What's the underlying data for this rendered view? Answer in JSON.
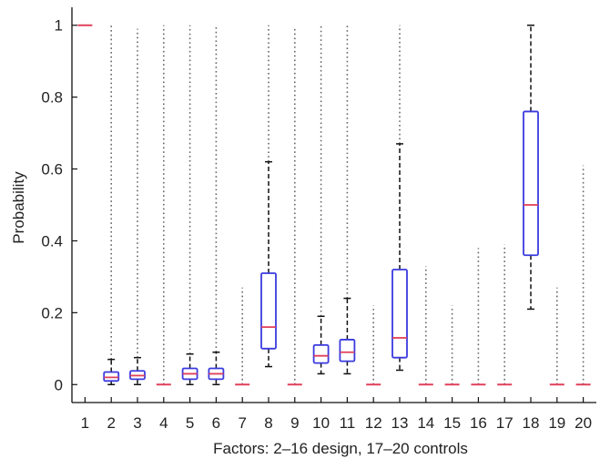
{
  "chart_data": {
    "type": "boxplot",
    "ylabel": "Probability",
    "xlabel": "Factors: 2–16 design, 17–20 controls",
    "ylim": [
      -0.05,
      1.05
    ],
    "y_ticks": [
      "0",
      "0.2",
      "0.4",
      "0.6",
      "0.8",
      "1"
    ],
    "y_tick_values": [
      0,
      0.2,
      0.4,
      0.6,
      0.8,
      1
    ],
    "categories": [
      "1",
      "2",
      "3",
      "4",
      "5",
      "6",
      "7",
      "8",
      "9",
      "10",
      "11",
      "12",
      "13",
      "14",
      "15",
      "16",
      "17",
      "18",
      "19",
      "20"
    ],
    "colors": {
      "box": "#3a3adf",
      "median": "#e0405a",
      "whisker": "#111111",
      "outlier": "#666666"
    },
    "boxes": [
      {
        "category": "1",
        "min": 1.0,
        "q1": 1.0,
        "median": 1.0,
        "q3": 1.0,
        "max": 1.0,
        "outlier_range": null
      },
      {
        "category": "2",
        "min": 0.0,
        "q1": 0.01,
        "median": 0.02,
        "q3": 0.035,
        "max": 0.07,
        "outlier_range": [
          0.07,
          1.0
        ]
      },
      {
        "category": "3",
        "min": 0.0,
        "q1": 0.015,
        "median": 0.025,
        "q3": 0.038,
        "max": 0.075,
        "outlier_range": [
          0.075,
          0.99
        ]
      },
      {
        "category": "4",
        "min": 0.0,
        "q1": 0.0,
        "median": 0.0,
        "q3": 0.0,
        "max": 0.0,
        "outlier_range": [
          0.0,
          1.0
        ]
      },
      {
        "category": "5",
        "min": 0.0,
        "q1": 0.015,
        "median": 0.03,
        "q3": 0.045,
        "max": 0.085,
        "outlier_range": [
          0.085,
          1.0
        ]
      },
      {
        "category": "6",
        "min": 0.0,
        "q1": 0.015,
        "median": 0.03,
        "q3": 0.045,
        "max": 0.09,
        "outlier_range": [
          0.09,
          1.0
        ]
      },
      {
        "category": "7",
        "min": 0.0,
        "q1": 0.0,
        "median": 0.0,
        "q3": 0.0,
        "max": 0.0,
        "outlier_range": [
          0.0,
          0.27
        ]
      },
      {
        "category": "8",
        "min": 0.05,
        "q1": 0.1,
        "median": 0.16,
        "q3": 0.31,
        "max": 0.62,
        "outlier_range": [
          0.62,
          1.0
        ]
      },
      {
        "category": "9",
        "min": 0.0,
        "q1": 0.0,
        "median": 0.0,
        "q3": 0.0,
        "max": 0.0,
        "outlier_range": [
          0.0,
          0.99
        ]
      },
      {
        "category": "10",
        "min": 0.03,
        "q1": 0.06,
        "median": 0.08,
        "q3": 0.11,
        "max": 0.19,
        "outlier_range": [
          0.19,
          1.0
        ]
      },
      {
        "category": "11",
        "min": 0.03,
        "q1": 0.065,
        "median": 0.09,
        "q3": 0.125,
        "max": 0.24,
        "outlier_range": [
          0.24,
          1.0
        ]
      },
      {
        "category": "12",
        "min": 0.0,
        "q1": 0.0,
        "median": 0.0,
        "q3": 0.0,
        "max": 0.0,
        "outlier_range": [
          0.0,
          0.22
        ]
      },
      {
        "category": "13",
        "min": 0.04,
        "q1": 0.075,
        "median": 0.13,
        "q3": 0.32,
        "max": 0.67,
        "outlier_range": [
          0.67,
          1.0
        ]
      },
      {
        "category": "14",
        "min": 0.0,
        "q1": 0.0,
        "median": 0.0,
        "q3": 0.0,
        "max": 0.0,
        "outlier_range": [
          0.0,
          0.33
        ]
      },
      {
        "category": "15",
        "min": 0.0,
        "q1": 0.0,
        "median": 0.0,
        "q3": 0.0,
        "max": 0.0,
        "outlier_range": [
          0.0,
          0.22
        ]
      },
      {
        "category": "16",
        "min": 0.0,
        "q1": 0.0,
        "median": 0.0,
        "q3": 0.0,
        "max": 0.0,
        "outlier_range": [
          0.0,
          0.38
        ]
      },
      {
        "category": "17",
        "min": 0.0,
        "q1": 0.0,
        "median": 0.0,
        "q3": 0.0,
        "max": 0.0,
        "outlier_range": [
          0.0,
          0.39
        ]
      },
      {
        "category": "18",
        "min": 0.21,
        "q1": 0.36,
        "median": 0.5,
        "q3": 0.76,
        "max": 1.0,
        "outlier_range": null
      },
      {
        "category": "19",
        "min": 0.0,
        "q1": 0.0,
        "median": 0.0,
        "q3": 0.0,
        "max": 0.0,
        "outlier_range": [
          0.0,
          0.27
        ]
      },
      {
        "category": "20",
        "min": 0.0,
        "q1": 0.0,
        "median": 0.0,
        "q3": 0.0,
        "max": 0.0,
        "outlier_range": [
          0.0,
          0.61
        ]
      }
    ]
  }
}
